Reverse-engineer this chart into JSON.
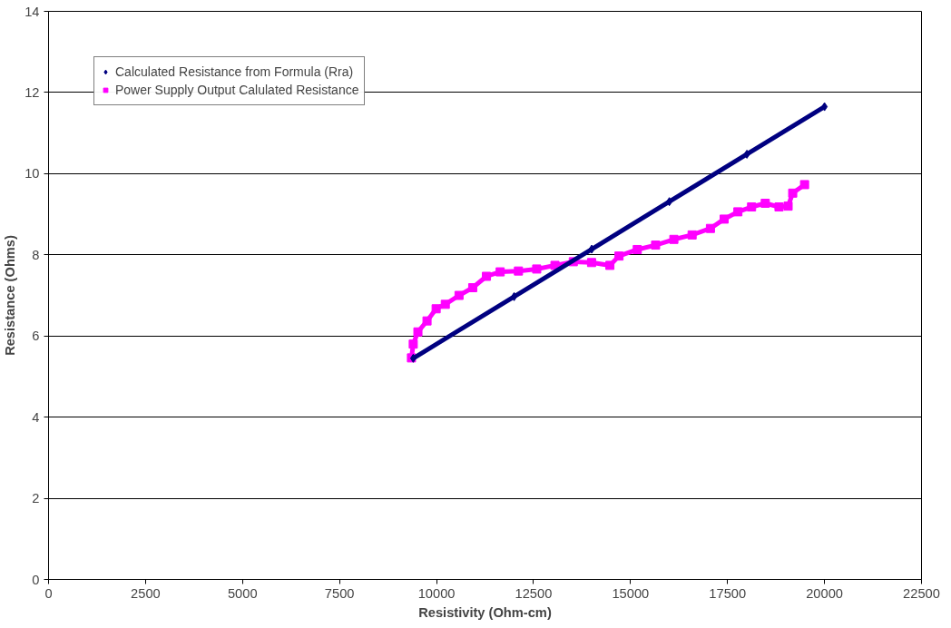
{
  "chart_data": {
    "type": "line",
    "xlabel": "Resistivity (Ohm-cm)",
    "ylabel": "Resistance (Ohms)",
    "xlim": [
      0,
      22500
    ],
    "xticks": [
      0,
      2500,
      5000,
      7500,
      10000,
      12500,
      15000,
      17500,
      20000,
      22500
    ],
    "ylim": [
      0,
      14
    ],
    "yticks": [
      0,
      2,
      4,
      6,
      8,
      10,
      12,
      14
    ],
    "grid": "y",
    "legend": "top left",
    "series": [
      {
        "name": "Calculated Resistance from Formula (Rra)",
        "color": "#000080",
        "marker": "diamond",
        "x": [
          9400,
          12000,
          14000,
          16000,
          18000,
          20000
        ],
        "values": [
          5.45,
          6.97,
          8.14,
          9.31,
          10.48,
          11.65
        ]
      },
      {
        "name": "Power Supply Output Calulated Resistance",
        "color": "#ff00ff",
        "marker": "square",
        "x": [
          9354,
          9400,
          9520,
          9755,
          9990,
          10226,
          10580,
          10933,
          11286,
          11640,
          12111,
          12582,
          13053,
          13525,
          13996,
          14468,
          14703,
          15174,
          15646,
          16117,
          16588,
          17060,
          17413,
          17767,
          18120,
          18473,
          18827,
          19062,
          19180,
          19486
        ],
        "values": [
          5.46,
          5.8,
          6.1,
          6.37,
          6.67,
          6.78,
          7.0,
          7.19,
          7.47,
          7.58,
          7.6,
          7.65,
          7.74,
          7.83,
          7.81,
          7.74,
          7.97,
          8.13,
          8.24,
          8.38,
          8.49,
          8.65,
          8.88,
          9.06,
          9.18,
          9.27,
          9.18,
          9.2,
          9.52,
          9.73
        ]
      }
    ]
  }
}
